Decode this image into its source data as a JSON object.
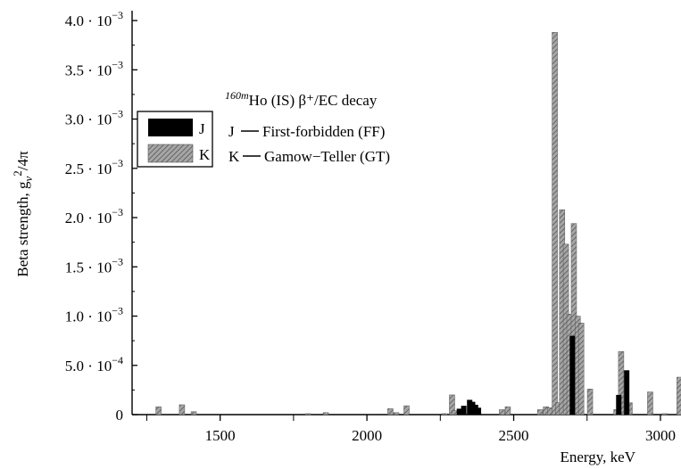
{
  "chart_data": {
    "type": "bar",
    "title": "Ho (IS) β⁺/EC decay",
    "title_superscript": "160m",
    "xlabel": "Energy, keV",
    "ylabel": "Beta strength, g_v²/4π",
    "ylabel_main": "Beta strength, g",
    "ylabel_sub": "v",
    "ylabel_sup": "2",
    "ylabel_tail": "/4π",
    "xlim": [
      1200,
      3070
    ],
    "ylim": [
      0,
      0.0041
    ],
    "grid": false,
    "legend_position": "upper-left",
    "x_ticks": [
      {
        "value": 1500,
        "label": "1500"
      },
      {
        "value": 2000,
        "label": "2000"
      },
      {
        "value": 2500,
        "label": "2500"
      },
      {
        "value": 3000,
        "label": "3000"
      }
    ],
    "y_ticks": [
      {
        "value": 0,
        "label": "0",
        "exp": ""
      },
      {
        "value": 0.0005,
        "label": "5.0 · 10",
        "exp": "−4"
      },
      {
        "value": 0.001,
        "label": "1.0 · 10",
        "exp": "−3"
      },
      {
        "value": 0.0015,
        "label": "1.5 · 10",
        "exp": "−3"
      },
      {
        "value": 0.002,
        "label": "2.0 · 10",
        "exp": "−3"
      },
      {
        "value": 0.0025,
        "label": "2.5 · 10",
        "exp": "−3"
      },
      {
        "value": 0.003,
        "label": "3.0 · 10",
        "exp": "−3"
      },
      {
        "value": 0.0035,
        "label": "3.5 · 10",
        "exp": "−3"
      },
      {
        "value": 0.004,
        "label": "4.0 · 10",
        "exp": "−3"
      }
    ],
    "series": [
      {
        "name": "J",
        "description": "First-forbidden (FF)",
        "color": "#000000",
        "pattern": "solid",
        "points": [
          {
            "x": 2315,
            "y": 6e-05
          },
          {
            "x": 2330,
            "y": 9e-05
          },
          {
            "x": 2350,
            "y": 0.00015
          },
          {
            "x": 2360,
            "y": 0.00013
          },
          {
            "x": 2370,
            "y": 0.0001
          },
          {
            "x": 2380,
            "y": 7e-05
          },
          {
            "x": 2700,
            "y": 0.0008
          },
          {
            "x": 2858,
            "y": 0.0002
          },
          {
            "x": 2885,
            "y": 0.00045
          }
        ]
      },
      {
        "name": "K",
        "description": "Gamow−Teller (GT)",
        "color": "#a6a6a6",
        "pattern": "hatched",
        "points": [
          {
            "x": 1290,
            "y": 8e-05
          },
          {
            "x": 1370,
            "y": 0.0001
          },
          {
            "x": 1410,
            "y": 3e-05
          },
          {
            "x": 1800,
            "y": 1e-05
          },
          {
            "x": 1860,
            "y": 2e-05
          },
          {
            "x": 2080,
            "y": 6e-05
          },
          {
            "x": 2100,
            "y": 2e-05
          },
          {
            "x": 2135,
            "y": 9e-05
          },
          {
            "x": 2265,
            "y": 1e-05
          },
          {
            "x": 2290,
            "y": 0.0002
          },
          {
            "x": 2300,
            "y": 4e-05
          },
          {
            "x": 2460,
            "y": 5e-05
          },
          {
            "x": 2480,
            "y": 8e-05
          },
          {
            "x": 2590,
            "y": 5e-05
          },
          {
            "x": 2610,
            "y": 8e-05
          },
          {
            "x": 2625,
            "y": 7e-05
          },
          {
            "x": 2640,
            "y": 0.00388
          },
          {
            "x": 2652,
            "y": 0.00012
          },
          {
            "x": 2665,
            "y": 0.00208
          },
          {
            "x": 2678,
            "y": 0.00173
          },
          {
            "x": 2690,
            "y": 0.00102
          },
          {
            "x": 2705,
            "y": 0.00194
          },
          {
            "x": 2718,
            "y": 0.001
          },
          {
            "x": 2730,
            "y": 0.00093
          },
          {
            "x": 2760,
            "y": 0.00026
          },
          {
            "x": 2850,
            "y": 5e-05
          },
          {
            "x": 2866,
            "y": 0.00064
          },
          {
            "x": 2895,
            "y": 0.00012
          },
          {
            "x": 2965,
            "y": 0.00023
          },
          {
            "x": 3015,
            "y": 1e-05
          },
          {
            "x": 3065,
            "y": 0.00038
          }
        ]
      }
    ]
  }
}
